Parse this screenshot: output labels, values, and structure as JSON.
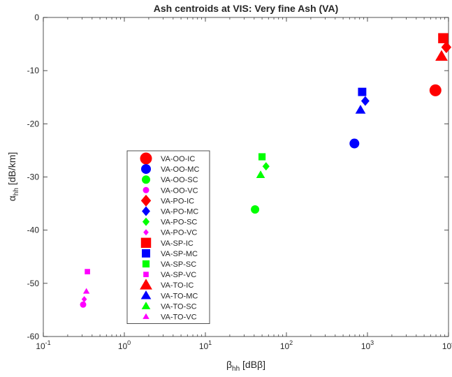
{
  "chart_data": {
    "type": "scatter",
    "title": "Ash centroids at VIS: Very fine Ash (VA)",
    "xlabel": {
      "main": "β",
      "sub": "hh",
      "unit": " [dBβ]"
    },
    "ylabel": {
      "main": "α",
      "sub": "hh",
      "unit": " [dB/km]"
    },
    "x_scale": "log",
    "xlim": [
      0.1,
      10000
    ],
    "ylim": [
      -60,
      0
    ],
    "x_ticks": [
      {
        "value": 0.1,
        "base": "10",
        "exp": "-1"
      },
      {
        "value": 1,
        "base": "10",
        "exp": "0"
      },
      {
        "value": 10,
        "base": "10",
        "exp": "1"
      },
      {
        "value": 100,
        "base": "10",
        "exp": "2"
      },
      {
        "value": 1000,
        "base": "10",
        "exp": "3"
      },
      {
        "value": 10000,
        "base": "10",
        "exp": "4"
      }
    ],
    "y_ticks": [
      {
        "value": 0,
        "label": "0"
      },
      {
        "value": -10,
        "label": "-10"
      },
      {
        "value": -20,
        "label": "-20"
      },
      {
        "value": -30,
        "label": "-30"
      },
      {
        "value": -40,
        "label": "-40"
      },
      {
        "value": -50,
        "label": "-50"
      },
      {
        "value": -60,
        "label": "-60"
      }
    ],
    "grid": false,
    "legend_position": "inside, lower-left-center",
    "colors": {
      "IC": "#ff0000",
      "MC": "#0000ff",
      "SC": "#00ff00",
      "VC": "#ff00ff"
    },
    "marker_sizes": {
      "IC": "large",
      "MC": "medium-large",
      "SC": "medium",
      "VC": "small"
    },
    "series": [
      {
        "name": "VA-OO-IC",
        "marker": "circle",
        "class": "IC",
        "x": 6900,
        "y": -13.7
      },
      {
        "name": "VA-OO-MC",
        "marker": "circle",
        "class": "MC",
        "x": 690,
        "y": -23.7
      },
      {
        "name": "VA-OO-SC",
        "marker": "circle",
        "class": "SC",
        "x": 41,
        "y": -36.1
      },
      {
        "name": "VA-OO-VC",
        "marker": "circle",
        "class": "VC",
        "x": 0.31,
        "y": -54.0
      },
      {
        "name": "VA-PO-IC",
        "marker": "diamond",
        "class": "IC",
        "x": 9400,
        "y": -5.6
      },
      {
        "name": "VA-PO-MC",
        "marker": "diamond",
        "class": "MC",
        "x": 940,
        "y": -15.7
      },
      {
        "name": "VA-PO-SC",
        "marker": "diamond",
        "class": "SC",
        "x": 56,
        "y": -28.0
      },
      {
        "name": "VA-PO-VC",
        "marker": "diamond",
        "class": "VC",
        "x": 0.32,
        "y": -53.0
      },
      {
        "name": "VA-SP-IC",
        "marker": "square",
        "class": "IC",
        "x": 8600,
        "y": -3.9
      },
      {
        "name": "VA-SP-MC",
        "marker": "square",
        "class": "MC",
        "x": 860,
        "y": -14.0
      },
      {
        "name": "VA-SP-SC",
        "marker": "square",
        "class": "SC",
        "x": 50,
        "y": -26.2
      },
      {
        "name": "VA-SP-VC",
        "marker": "square",
        "class": "VC",
        "x": 0.35,
        "y": -47.8
      },
      {
        "name": "VA-TO-IC",
        "marker": "triangle",
        "class": "IC",
        "x": 8200,
        "y": -7.3
      },
      {
        "name": "VA-TO-MC",
        "marker": "triangle",
        "class": "MC",
        "x": 820,
        "y": -17.4
      },
      {
        "name": "VA-TO-SC",
        "marker": "triangle",
        "class": "SC",
        "x": 48,
        "y": -29.6
      },
      {
        "name": "VA-TO-VC",
        "marker": "triangle",
        "class": "VC",
        "x": 0.34,
        "y": -51.5
      }
    ]
  }
}
